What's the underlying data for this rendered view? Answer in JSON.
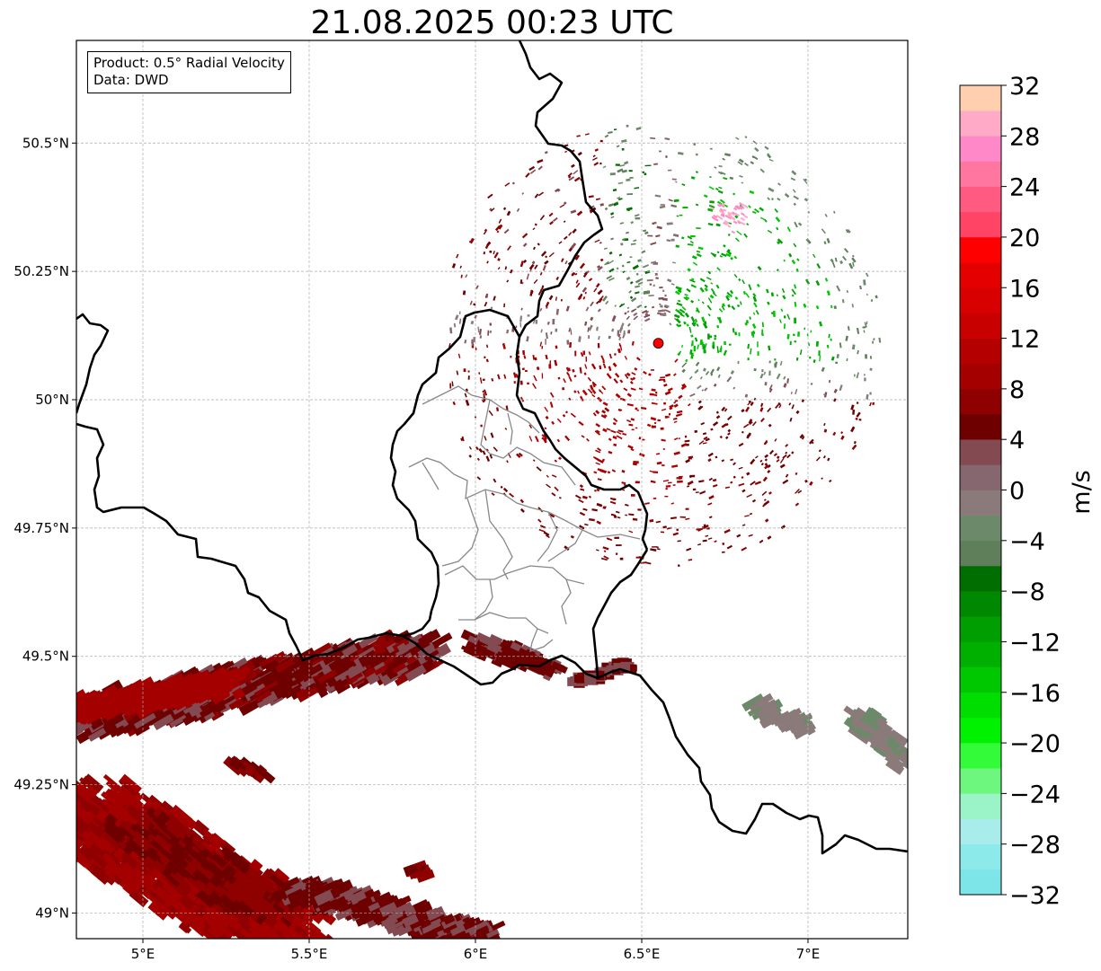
{
  "title": "21.08.2025 00:23 UTC",
  "info": {
    "product_line": "Product: 0.5° Radial Velocity",
    "data_line": "Data: DWD"
  },
  "map": {
    "lon_range": [
      4.8,
      7.3
    ],
    "lat_range": [
      48.95,
      50.7
    ],
    "lon_ticks": [
      {
        "value": 5.0,
        "label": "5°E"
      },
      {
        "value": 5.5,
        "label": "5.5°E"
      },
      {
        "value": 6.0,
        "label": "6°E"
      },
      {
        "value": 6.5,
        "label": "6.5°E"
      },
      {
        "value": 7.0,
        "label": "7°E"
      }
    ],
    "lat_ticks": [
      {
        "value": 50.5,
        "label": "50.5°N"
      },
      {
        "value": 50.25,
        "label": "50.25°N"
      },
      {
        "value": 50.0,
        "label": "50°N"
      },
      {
        "value": 49.75,
        "label": "49.75°N"
      },
      {
        "value": 49.5,
        "label": "49.5°N"
      },
      {
        "value": 49.25,
        "label": "49.25°N"
      },
      {
        "value": 49.0,
        "label": "49°N"
      }
    ],
    "radar_site": {
      "lon": 6.55,
      "lat": 50.11,
      "color": "#ff0000"
    },
    "gridlines": true
  },
  "colorbar": {
    "unit": "m/s",
    "range": [
      -32,
      32
    ],
    "step": 2,
    "tick_labels": [
      "32",
      "28",
      "24",
      "20",
      "16",
      "12",
      "8",
      "4",
      "0",
      "−4",
      "−8",
      "−12",
      "−16",
      "−20",
      "−24",
      "−28",
      "−32"
    ],
    "tick_values": [
      32,
      28,
      24,
      20,
      16,
      12,
      8,
      4,
      0,
      -4,
      -8,
      -12,
      -16,
      -20,
      -24,
      -28,
      -32
    ],
    "colors_low_to_high": [
      "#7de5e8",
      "#8ceaea",
      "#a8ecec",
      "#9bf3c8",
      "#6ef77f",
      "#34fb3a",
      "#00f200",
      "#00de00",
      "#00c800",
      "#00b000",
      "#009e00",
      "#008800",
      "#006e00",
      "#5e7f5a",
      "#6c8a6a",
      "#8a7a7a",
      "#87676f",
      "#834a52",
      "#6e0000",
      "#8f0000",
      "#a40000",
      "#b50000",
      "#c80000",
      "#d80000",
      "#e50000",
      "#ff0000",
      "#ff4466",
      "#ff5a82",
      "#ff77a0",
      "#ff88c8",
      "#ffaac6",
      "#ffcfb0"
    ]
  }
}
